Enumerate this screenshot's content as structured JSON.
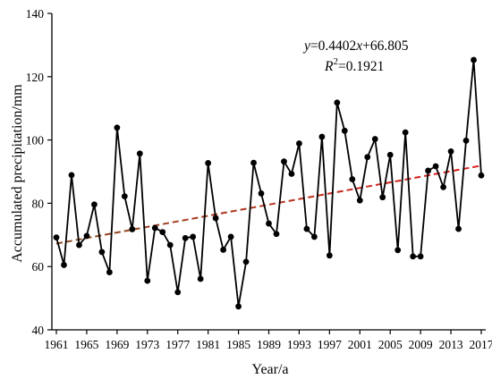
{
  "chart_data": {
    "type": "line",
    "xlabel": "Year/a",
    "ylabel": "Accumulated precipitation/mm",
    "ylim": [
      40,
      140
    ],
    "xlim": [
      1961,
      2017
    ],
    "y_ticks": [
      40,
      60,
      80,
      100,
      120,
      140
    ],
    "x_ticks": [
      1961,
      1965,
      1969,
      1973,
      1977,
      1981,
      1985,
      1989,
      1993,
      1997,
      2001,
      2005,
      2009,
      2013,
      2017
    ],
    "grid": false,
    "series": [
      {
        "x": [
          1961,
          1962,
          1963,
          1964,
          1965,
          1966,
          1967,
          1968,
          1969,
          1970,
          1971,
          1972,
          1973,
          1974,
          1975,
          1976,
          1977,
          1978,
          1979,
          1980,
          1981,
          1982,
          1983,
          1984,
          1985,
          1986,
          1987,
          1988,
          1989,
          1990,
          1991,
          1992,
          1993,
          1994,
          1995,
          1996,
          1997,
          1998,
          1999,
          2000,
          2001,
          2002,
          2003,
          2004,
          2005,
          2006,
          2007,
          2008,
          2009,
          2010,
          2011,
          2012,
          2013,
          2014,
          2015,
          2016,
          2017
        ],
        "values": [
          69.2,
          60.5,
          88.9,
          66.8,
          69.7,
          79.6,
          64.6,
          58.2,
          103.9,
          82.2,
          71.8,
          95.7,
          55.5,
          72.2,
          70.9,
          66.8,
          51.9,
          69.0,
          69.4,
          56.1,
          92.7,
          75.3,
          65.3,
          69.4,
          47.4,
          61.5,
          92.8,
          83.1,
          73.6,
          70.3,
          93.2,
          89.3,
          98.9,
          71.9,
          69.4,
          101.0,
          63.5,
          111.8,
          102.9,
          87.6,
          80.9,
          94.6,
          100.3,
          81.9,
          95.3,
          65.2,
          102.4,
          63.2,
          63.2,
          90.3,
          91.7,
          85.1,
          96.4,
          71.9,
          99.8,
          125.3,
          88.8
        ],
        "color": "#000000"
      }
    ],
    "trendline": {
      "slope": 0.4402,
      "intercept": 66.805,
      "color": "#c0392b",
      "equation_label": "y=0.4402x+66.805",
      "r2_label": "R2=0.1921"
    }
  }
}
